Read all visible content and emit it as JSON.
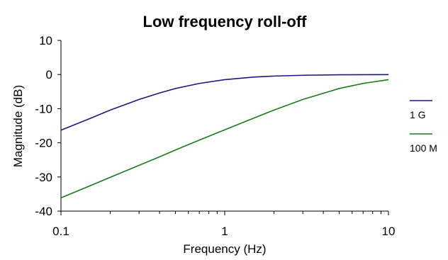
{
  "chart_data": {
    "type": "line",
    "title": "Low frequency roll-off",
    "xlabel": "Frequency (Hz)",
    "ylabel": "Magnitude (dB)",
    "xscale": "log",
    "xlim": [
      0.1,
      10
    ],
    "ylim": [
      -40,
      10
    ],
    "xticks": [
      0.1,
      1,
      10
    ],
    "xtick_labels": [
      "0.1",
      "1",
      "10"
    ],
    "yticks": [
      10,
      0,
      -10,
      -20,
      -30,
      -40
    ],
    "ytick_labels": [
      "10",
      "0",
      "-10",
      "-20",
      "-30",
      "-40"
    ],
    "grid": false,
    "legend": "right",
    "series": [
      {
        "name": "1 G",
        "color": "#1a1a80",
        "x": [
          0.1,
          0.15,
          0.2,
          0.3,
          0.4,
          0.5,
          0.7,
          1,
          1.5,
          2,
          3,
          5,
          7,
          10
        ],
        "y": [
          -16.3,
          -12.9,
          -10.4,
          -7.3,
          -5.4,
          -4.1,
          -2.6,
          -1.5,
          -0.75,
          -0.45,
          -0.22,
          -0.08,
          -0.04,
          -0.02
        ]
      },
      {
        "name": "100 M",
        "color": "#1a7a1a",
        "x": [
          0.1,
          0.15,
          0.2,
          0.3,
          0.4,
          0.5,
          0.7,
          1,
          1.5,
          2,
          3,
          5,
          7,
          10
        ],
        "y": [
          -36.1,
          -32.6,
          -30.1,
          -26.6,
          -24.1,
          -22.1,
          -19.2,
          -16.2,
          -12.8,
          -10.4,
          -7.3,
          -4.1,
          -2.6,
          -1.5
        ]
      }
    ]
  }
}
